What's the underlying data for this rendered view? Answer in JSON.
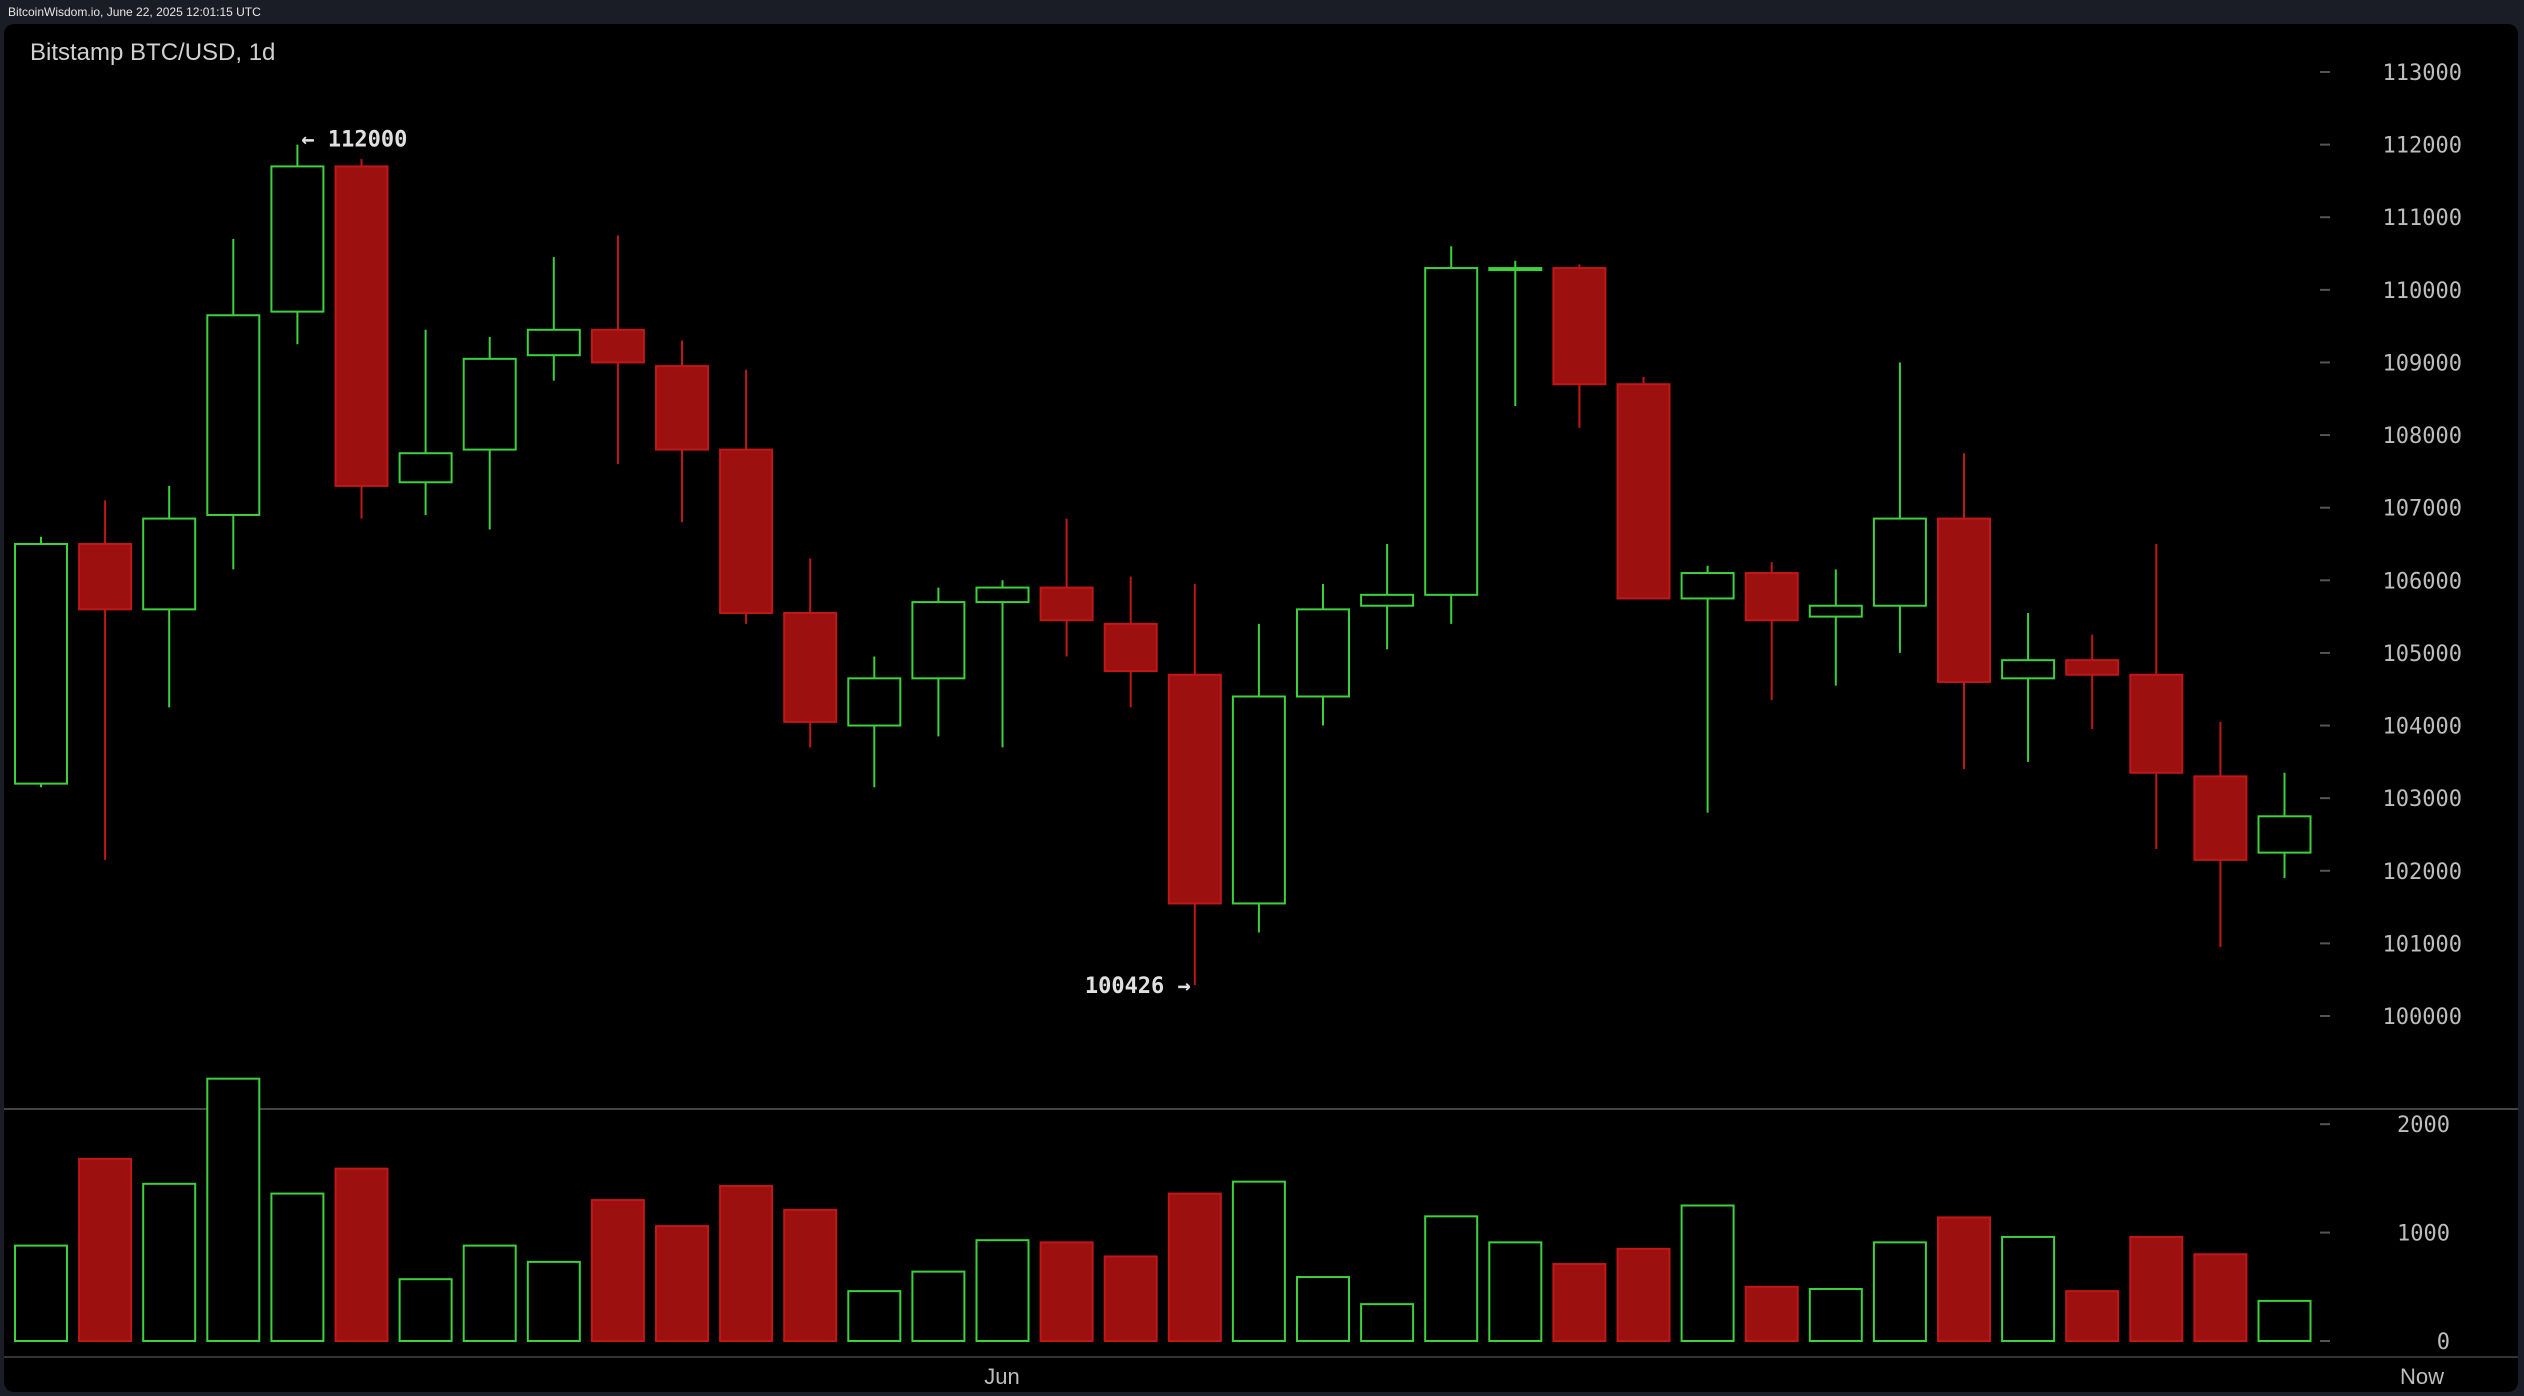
{
  "header": {
    "text": "BitcoinWisdom.io, June 22, 2025 12:01:15 UTC"
  },
  "chart_data": {
    "type": "candlestick",
    "title": "Bitstamp BTC/USD, 1d",
    "price_axis": {
      "range": [
        100000,
        113000
      ],
      "ticks": [
        113000,
        112000,
        111000,
        110000,
        109000,
        108000,
        107000,
        106000,
        105000,
        104000,
        103000,
        102000,
        101000,
        100000
      ]
    },
    "volume_axis": {
      "range": [
        0,
        2500
      ],
      "ticks": [
        2000,
        1000,
        0
      ]
    },
    "x_labels": [
      "Jun",
      "Now"
    ],
    "annotations": {
      "high": "← 112000",
      "low": "100426 →"
    },
    "candles": [
      {
        "o": 103200,
        "h": 106600,
        "l": 103150,
        "c": 106500,
        "v": 880
      },
      {
        "o": 106500,
        "h": 107100,
        "l": 102150,
        "c": 105600,
        "v": 1680
      },
      {
        "o": 105600,
        "h": 107300,
        "l": 104250,
        "c": 106850,
        "v": 1450
      },
      {
        "o": 106900,
        "h": 110700,
        "l": 106150,
        "c": 109650,
        "v": 2420
      },
      {
        "o": 109700,
        "h": 112000,
        "l": 109250,
        "c": 111700,
        "v": 1360
      },
      {
        "o": 111700,
        "h": 111800,
        "l": 106850,
        "c": 107300,
        "v": 1590
      },
      {
        "o": 107350,
        "h": 109450,
        "l": 106900,
        "c": 107750,
        "v": 570
      },
      {
        "o": 107800,
        "h": 109350,
        "l": 106700,
        "c": 109050,
        "v": 880
      },
      {
        "o": 109100,
        "h": 110450,
        "l": 108750,
        "c": 109450,
        "v": 730
      },
      {
        "o": 109450,
        "h": 110750,
        "l": 107600,
        "c": 109000,
        "v": 1300
      },
      {
        "o": 108950,
        "h": 109300,
        "l": 106800,
        "c": 107800,
        "v": 1060
      },
      {
        "o": 107800,
        "h": 108900,
        "l": 105400,
        "c": 105550,
        "v": 1430
      },
      {
        "o": 105550,
        "h": 106300,
        "l": 103700,
        "c": 104050,
        "v": 1210
      },
      {
        "o": 104000,
        "h": 104950,
        "l": 103150,
        "c": 104650,
        "v": 460
      },
      {
        "o": 104650,
        "h": 105900,
        "l": 103850,
        "c": 105700,
        "v": 640
      },
      {
        "o": 105700,
        "h": 106000,
        "l": 103700,
        "c": 105900,
        "v": 930
      },
      {
        "o": 105900,
        "h": 106850,
        "l": 104950,
        "c": 105450,
        "v": 910
      },
      {
        "o": 105400,
        "h": 106050,
        "l": 104250,
        "c": 104750,
        "v": 780
      },
      {
        "o": 104700,
        "h": 105950,
        "l": 100426,
        "c": 101550,
        "v": 1360
      },
      {
        "o": 101550,
        "h": 105400,
        "l": 101150,
        "c": 104400,
        "v": 1470
      },
      {
        "o": 104400,
        "h": 105950,
        "l": 104000,
        "c": 105600,
        "v": 590
      },
      {
        "o": 105650,
        "h": 106500,
        "l": 105050,
        "c": 105800,
        "v": 340
      },
      {
        "o": 105800,
        "h": 110600,
        "l": 105400,
        "c": 110300,
        "v": 1150
      },
      {
        "o": 110300,
        "h": 110400,
        "l": 108400,
        "c": 110300,
        "v": 910
      },
      {
        "o": 110300,
        "h": 110350,
        "l": 108100,
        "c": 108700,
        "v": 710
      },
      {
        "o": 108700,
        "h": 108800,
        "l": 105750,
        "c": 105750,
        "v": 850
      },
      {
        "o": 105750,
        "h": 106200,
        "l": 102800,
        "c": 106100,
        "v": 1250
      },
      {
        "o": 106100,
        "h": 106250,
        "l": 104350,
        "c": 105450,
        "v": 500
      },
      {
        "o": 105500,
        "h": 106150,
        "l": 104550,
        "c": 105650,
        "v": 480
      },
      {
        "o": 105650,
        "h": 109000,
        "l": 105000,
        "c": 106850,
        "v": 910
      },
      {
        "o": 106850,
        "h": 107750,
        "l": 103400,
        "c": 104600,
        "v": 1140
      },
      {
        "o": 104650,
        "h": 105550,
        "l": 103500,
        "c": 104900,
        "v": 960
      },
      {
        "o": 104900,
        "h": 105250,
        "l": 103950,
        "c": 104700,
        "v": 460
      },
      {
        "o": 104700,
        "h": 106500,
        "l": 102300,
        "c": 103350,
        "v": 960
      },
      {
        "o": 103300,
        "h": 104050,
        "l": 100950,
        "c": 102150,
        "v": 800
      },
      {
        "o": 102250,
        "h": 103350,
        "l": 101900,
        "c": 102750,
        "v": 370
      }
    ],
    "colors": {
      "up": "#3dd13d",
      "down": "#9c1010",
      "down_border": "#c01818",
      "grid": "#555555",
      "separator": "#444444"
    }
  }
}
